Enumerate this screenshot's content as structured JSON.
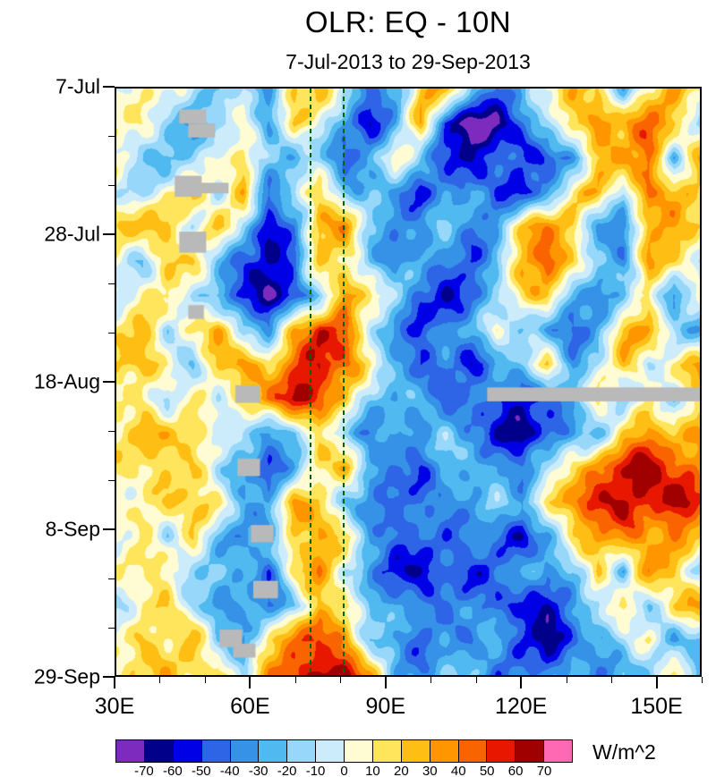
{
  "chart_data": {
    "type": "heatmap",
    "title": "OLR: EQ - 10N",
    "subtitle": "7-Jul-2013 to 29-Sep-2013",
    "units": "W/m^2",
    "x_axis": {
      "range": [
        30,
        160
      ],
      "ticks": [
        30,
        60,
        90,
        120,
        150
      ],
      "tick_labels": [
        "30E",
        "60E",
        "90E",
        "120E",
        "150E"
      ],
      "minor_step": 10
    },
    "y_axis": {
      "range_days": [
        0,
        84
      ],
      "tick_days": [
        0,
        21,
        42,
        63,
        84
      ],
      "tick_labels": [
        "7-Jul",
        "28-Jul",
        "18-Aug",
        "8-Sep",
        "29-Sep"
      ],
      "minor_step": 7
    },
    "levels": [
      -70,
      -60,
      -50,
      -40,
      -30,
      -20,
      -10,
      0,
      10,
      20,
      30,
      40,
      50,
      60,
      70
    ],
    "colors": [
      "#7d2abf",
      "#00008b",
      "#0000e6",
      "#2e64e6",
      "#3592e6",
      "#50b9f0",
      "#96d7fa",
      "#cdecfb",
      "#fffbd2",
      "#ffe55c",
      "#ffbe14",
      "#ff9600",
      "#fa6400",
      "#e81800",
      "#a00000",
      "#ff69b4"
    ],
    "missing_color": "#b9b9b9",
    "dashed_lines": {
      "color": "#006400",
      "lons": [
        73,
        80.5
      ]
    },
    "grid": [
      [
        -5,
        0,
        5,
        -15,
        -25,
        -15,
        -35,
        15,
        25,
        -10,
        -45,
        -30,
        20,
        35,
        -20,
        -40,
        -25,
        10,
        30,
        25,
        -30,
        15,
        35,
        20
      ],
      [
        0,
        10,
        -10,
        -30,
        -20,
        5,
        -25,
        30,
        -5,
        -35,
        -55,
        -25,
        30,
        -60,
        -75,
        -70,
        -45,
        -20,
        25,
        40,
        20,
        45,
        30,
        -15
      ],
      [
        5,
        -10,
        -25,
        -15,
        0,
        20,
        -15,
        -30,
        -20,
        -40,
        -30,
        10,
        -25,
        -50,
        -65,
        -45,
        -55,
        -50,
        -35,
        15,
        30,
        40,
        -25,
        25
      ],
      [
        -10,
        -20,
        10,
        20,
        -15,
        30,
        -40,
        -15,
        25,
        -25,
        -15,
        -35,
        -55,
        -30,
        -20,
        -50,
        -55,
        -30,
        20,
        35,
        -15,
        50,
        30,
        20
      ],
      [
        15,
        25,
        30,
        -10,
        25,
        -20,
        -55,
        -35,
        20,
        35,
        -15,
        -30,
        -40,
        -20,
        -35,
        -25,
        20,
        35,
        25,
        -30,
        -45,
        20,
        40,
        25
      ],
      [
        5,
        -15,
        20,
        30,
        -25,
        -40,
        -60,
        -45,
        30,
        15,
        -20,
        -40,
        -25,
        -35,
        -50,
        -30,
        30,
        45,
        20,
        -25,
        -35,
        30,
        20,
        -20
      ],
      [
        -15,
        10,
        25,
        -20,
        -30,
        -50,
        -65,
        -55,
        -25,
        40,
        25,
        -15,
        -45,
        -60,
        -35,
        -20,
        15,
        30,
        -20,
        -40,
        -25,
        15,
        -30,
        10
      ],
      [
        10,
        20,
        -15,
        15,
        30,
        -25,
        -35,
        35,
        55,
        40,
        -10,
        -30,
        -55,
        -40,
        -25,
        15,
        -20,
        -35,
        -45,
        -20,
        25,
        35,
        -15,
        -25
      ],
      [
        20,
        30,
        15,
        -20,
        25,
        40,
        20,
        50,
        65,
        45,
        20,
        -25,
        -45,
        -35,
        -55,
        -30,
        -15,
        20,
        -30,
        -15,
        30,
        -20,
        15,
        30
      ],
      [
        5,
        15,
        -10,
        10,
        -15,
        25,
        45,
        60,
        45,
        30,
        -15,
        -35,
        -25,
        -45,
        -30,
        -50,
        -60,
        -40,
        -25,
        15,
        -30,
        20,
        -15,
        10
      ],
      [
        10,
        20,
        25,
        15,
        5,
        -20,
        -35,
        -20,
        25,
        -25,
        -40,
        -20,
        -30,
        -15,
        -35,
        -55,
        -65,
        -45,
        -30,
        -20,
        25,
        35,
        20,
        40
      ],
      [
        15,
        10,
        20,
        30,
        -15,
        -30,
        -45,
        -25,
        15,
        30,
        -20,
        -35,
        -50,
        -30,
        -15,
        -25,
        -40,
        -20,
        25,
        40,
        55,
        65,
        50,
        35
      ],
      [
        5,
        15,
        25,
        10,
        20,
        -20,
        -30,
        30,
        20,
        -15,
        -35,
        -55,
        -40,
        -25,
        -35,
        -20,
        -30,
        25,
        35,
        50,
        65,
        55,
        70,
        45
      ],
      [
        0,
        10,
        -15,
        20,
        -25,
        -40,
        -20,
        15,
        35,
        20,
        -25,
        -45,
        -30,
        -50,
        -25,
        -40,
        -55,
        -30,
        20,
        35,
        45,
        30,
        40,
        25
      ],
      [
        10,
        5,
        15,
        -10,
        -20,
        -30,
        -45,
        25,
        40,
        -15,
        -30,
        -50,
        -65,
        -45,
        -55,
        -35,
        -25,
        -40,
        -20,
        25,
        -30,
        35,
        20,
        -15
      ],
      [
        -10,
        15,
        20,
        -15,
        -30,
        -20,
        -40,
        -25,
        30,
        20,
        -20,
        -35,
        -25,
        -40,
        -30,
        -55,
        -45,
        -60,
        -35,
        -20,
        25,
        -25,
        15,
        30
      ],
      [
        5,
        20,
        10,
        25,
        -20,
        -35,
        20,
        40,
        55,
        35,
        -15,
        -30,
        -45,
        -25,
        -35,
        -20,
        -50,
        -65,
        -40,
        -25,
        -15,
        20,
        -30,
        -20
      ],
      [
        15,
        10,
        25,
        15,
        30,
        -25,
        35,
        55,
        70,
        60,
        30,
        -20,
        -35,
        -25,
        -20,
        -40,
        -30,
        -45,
        -25,
        -35,
        -20,
        -30,
        15,
        -25
      ]
    ],
    "missing_rects": [
      {
        "lon0": 44,
        "lon1": 50,
        "day0": 3,
        "day1": 5
      },
      {
        "lon0": 46,
        "lon1": 52,
        "day0": 5,
        "day1": 7
      },
      {
        "lon0": 43,
        "lon1": 49,
        "day0": 12.5,
        "day1": 15.5
      },
      {
        "lon0": 49,
        "lon1": 55,
        "day0": 13.5,
        "day1": 15
      },
      {
        "lon0": 44,
        "lon1": 50,
        "day0": 20.5,
        "day1": 23.5
      },
      {
        "lon0": 46,
        "lon1": 49.5,
        "day0": 31,
        "day1": 33
      },
      {
        "lon0": 56.5,
        "lon1": 62,
        "day0": 42.5,
        "day1": 45
      },
      {
        "lon0": 112.6,
        "lon1": 160,
        "day0": 42.8,
        "day1": 44.8
      },
      {
        "lon0": 57,
        "lon1": 62,
        "day0": 53,
        "day1": 55.5
      },
      {
        "lon0": 60,
        "lon1": 65,
        "day0": 62.5,
        "day1": 65
      },
      {
        "lon0": 60.5,
        "lon1": 66,
        "day0": 70.5,
        "day1": 73
      },
      {
        "lon0": 53,
        "lon1": 58,
        "day0": 77.5,
        "day1": 80
      },
      {
        "lon0": 56,
        "lon1": 61,
        "day0": 79.5,
        "day1": 81.5
      }
    ]
  }
}
